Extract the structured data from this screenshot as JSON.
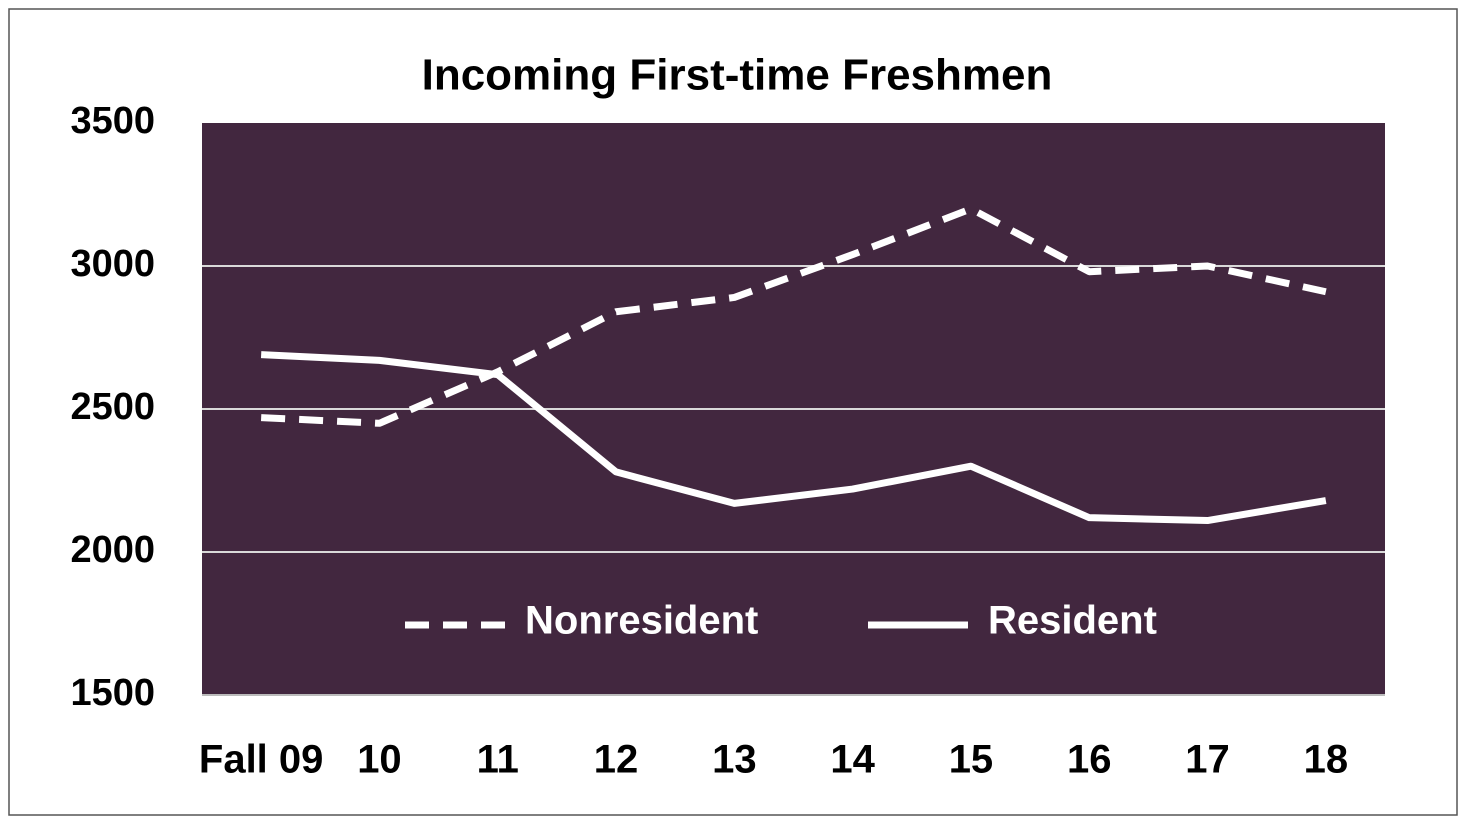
{
  "chart_data": {
    "type": "line",
    "title": "Incoming First-time Freshmen",
    "categories": [
      "Fall 09",
      "10",
      "11",
      "12",
      "13",
      "14",
      "15",
      "16",
      "17",
      "18"
    ],
    "series": [
      {
        "name": "Nonresident",
        "color": "#ffffff",
        "dashed": true,
        "values": [
          2470,
          2450,
          2630,
          2840,
          2890,
          3040,
          3200,
          2980,
          3000,
          2910
        ]
      },
      {
        "name": "Resident",
        "color": "#ffffff",
        "dashed": false,
        "values": [
          2690,
          2670,
          2620,
          2280,
          2170,
          2220,
          2300,
          2120,
          2110,
          2180
        ]
      }
    ],
    "ylim": [
      1500,
      3500
    ],
    "yticks": [
      1500,
      2000,
      2500,
      3000,
      3500
    ],
    "grid": true,
    "legend": "bottom",
    "plot_background": "#42273f"
  }
}
